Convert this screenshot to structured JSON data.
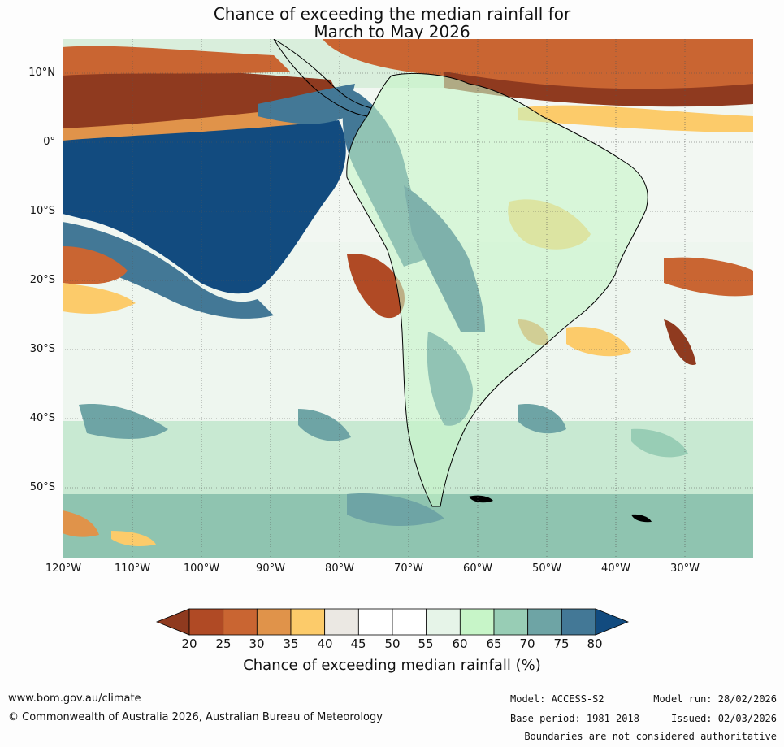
{
  "title": {
    "line1": "Chance of exceeding the median rainfall for",
    "line2": "March to May 2026"
  },
  "axes": {
    "lat_ticks": [
      "10°N",
      "0°",
      "10°S",
      "20°S",
      "30°S",
      "40°S",
      "50°S"
    ],
    "lon_ticks": [
      "120°W",
      "110°W",
      "100°W",
      "90°W",
      "80°W",
      "70°W",
      "60°W",
      "50°W",
      "40°W",
      "30°W"
    ]
  },
  "colorbar": {
    "labels": [
      "20",
      "25",
      "30",
      "35",
      "40",
      "45",
      "50",
      "55",
      "60",
      "65",
      "70",
      "75",
      "80"
    ],
    "colors": [
      "#8f3a1f",
      "#b04a25",
      "#c96532",
      "#e0934a",
      "#fccb6a",
      "#ebe8e3",
      "#ffffff",
      "#ffffff",
      "#e6f4e8",
      "#c7f5c8",
      "#98cdb5",
      "#6ea4a5",
      "#437896",
      "#124b7f"
    ],
    "title": "Chance of exceeding median rainfall (%)"
  },
  "footer": {
    "url": "www.bom.gov.au/climate",
    "copyright": "© Commonwealth of Australia 2026, Australian Bureau of Meteorology",
    "model": "Model: ACCESS-S2",
    "base_period": "Base period: 1981-2018",
    "model_run": "Model run: 28/02/2026",
    "issued": "Issued: 02/03/2026",
    "disclaimer": "Boundaries are not considered authoritative"
  }
}
